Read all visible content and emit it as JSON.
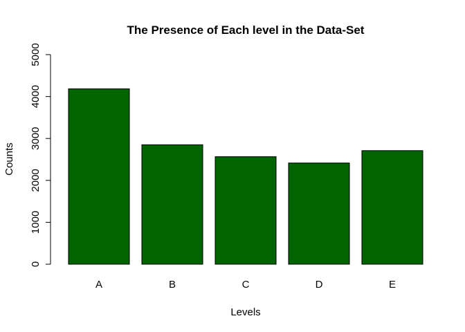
{
  "chart_data": {
    "type": "bar",
    "title": "The Presence of Each level in the Data-Set",
    "xlabel": "Levels",
    "ylabel": "Counts",
    "categories": [
      "A",
      "B",
      "C",
      "D",
      "E"
    ],
    "values": [
      4185,
      2850,
      2565,
      2415,
      2710
    ],
    "ylim": [
      0,
      5000
    ],
    "yticks": [
      "0",
      "1000",
      "2000",
      "3000",
      "4000",
      "5000"
    ],
    "bar_color": "#006400",
    "bar_border_color": "#000000",
    "grid": false,
    "legend": "none"
  }
}
